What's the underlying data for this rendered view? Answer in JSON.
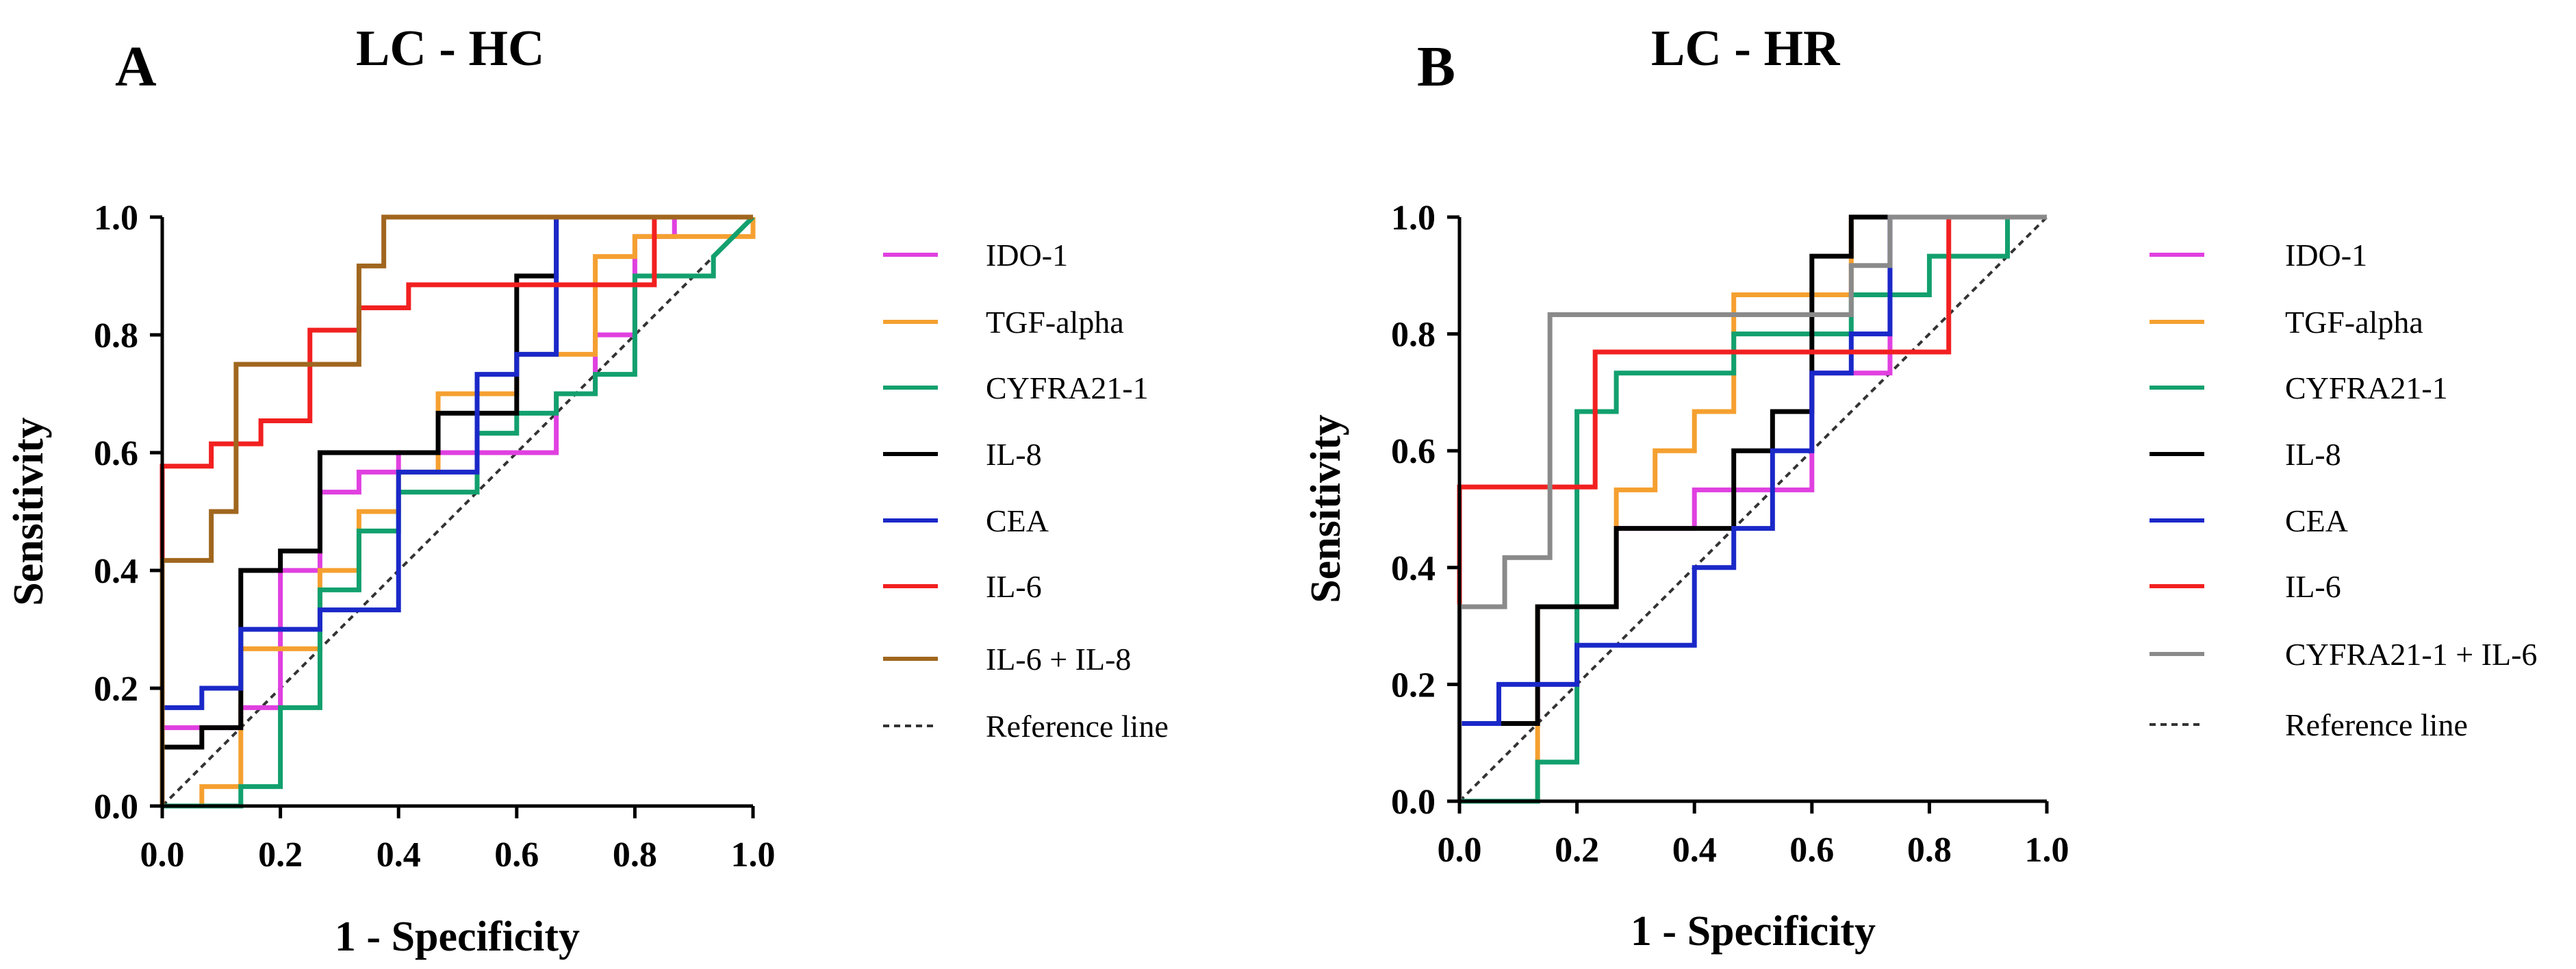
{
  "chart_data": [
    {
      "type": "line",
      "panel_letter": "A",
      "title": "LC - HC",
      "xlabel": "1 - Specificity",
      "ylabel": "Sensitivity",
      "xlim": [
        0,
        1
      ],
      "ylim": [
        0,
        1
      ],
      "xticks": [
        "0.0",
        "0.2",
        "0.4",
        "0.6",
        "0.8",
        "1.0"
      ],
      "yticks": [
        "0.0",
        "0.2",
        "0.4",
        "0.6",
        "0.8",
        "1.0"
      ],
      "legend_position": "right",
      "series": [
        {
          "name": "IDO-1",
          "color": "#e040e0",
          "x": [
            0,
            0,
            0.133,
            0.133,
            0.2,
            0.2,
            0.267,
            0.267,
            0.333,
            0.333,
            0.4,
            0.4,
            0.667,
            0.667,
            0.733,
            0.733,
            0.8,
            0.8,
            0.867,
            0.867,
            1
          ],
          "y": [
            0,
            0.133,
            0.133,
            0.167,
            0.167,
            0.4,
            0.4,
            0.533,
            0.533,
            0.567,
            0.567,
            0.6,
            0.6,
            0.7,
            0.7,
            0.8,
            0.8,
            0.967,
            0.967,
            1,
            1
          ]
        },
        {
          "name": "TGF-alpha",
          "color": "#f5a030",
          "x": [
            0,
            0.067,
            0.067,
            0.133,
            0.133,
            0.267,
            0.267,
            0.333,
            0.333,
            0.4,
            0.4,
            0.467,
            0.467,
            0.6,
            0.6,
            0.733,
            0.733,
            0.8,
            0.8,
            0.867,
            0.867,
            1,
            1
          ],
          "y": [
            0,
            0,
            0.033,
            0.033,
            0.267,
            0.267,
            0.4,
            0.4,
            0.5,
            0.5,
            0.567,
            0.567,
            0.7,
            0.7,
            0.767,
            0.767,
            0.933,
            0.933,
            0.967,
            0.967,
            0.967,
            0.967,
            1
          ]
        },
        {
          "name": "CYFRA21-1",
          "color": "#12a06e",
          "x": [
            0,
            0.133,
            0.133,
            0.2,
            0.2,
            0.267,
            0.267,
            0.333,
            0.333,
            0.4,
            0.4,
            0.533,
            0.533,
            0.6,
            0.6,
            0.667,
            0.667,
            0.733,
            0.733,
            0.8,
            0.8,
            0.933,
            0.933,
            1
          ],
          "y": [
            0,
            0,
            0.033,
            0.033,
            0.167,
            0.167,
            0.367,
            0.367,
            0.467,
            0.467,
            0.533,
            0.533,
            0.633,
            0.633,
            0.667,
            0.667,
            0.7,
            0.7,
            0.733,
            0.733,
            0.9,
            0.9,
            0.933,
            1
          ]
        },
        {
          "name": "IL-8",
          "color": "#000000",
          "x": [
            0,
            0,
            0.067,
            0.067,
            0.133,
            0.133,
            0.2,
            0.2,
            0.267,
            0.267,
            0.467,
            0.467,
            0.533,
            0.533,
            0.6,
            0.6,
            0.667,
            0.667,
            1
          ],
          "y": [
            0,
            0.1,
            0.1,
            0.133,
            0.133,
            0.4,
            0.4,
            0.433,
            0.433,
            0.6,
            0.6,
            0.667,
            0.667,
            0.667,
            0.667,
            0.9,
            0.9,
            1,
            1
          ]
        },
        {
          "name": "CEA",
          "color": "#1a28c8",
          "x": [
            0,
            0,
            0.067,
            0.067,
            0.133,
            0.133,
            0.267,
            0.267,
            0.4,
            0.4,
            0.533,
            0.533,
            0.6,
            0.6,
            0.667,
            0.667,
            1
          ],
          "y": [
            0,
            0.167,
            0.167,
            0.2,
            0.2,
            0.3,
            0.3,
            0.333,
            0.333,
            0.567,
            0.567,
            0.733,
            0.733,
            0.767,
            0.767,
            1,
            1
          ]
        },
        {
          "name": "IL-6",
          "color": "#f22020",
          "x": [
            0,
            0,
            0.083,
            0.083,
            0.167,
            0.167,
            0.25,
            0.25,
            0.333,
            0.333,
            0.417,
            0.417,
            0.833,
            0.833,
            1
          ],
          "y": [
            0,
            0.577,
            0.577,
            0.615,
            0.615,
            0.654,
            0.654,
            0.808,
            0.808,
            0.846,
            0.846,
            0.885,
            0.885,
            1,
            1
          ]
        },
        {
          "name": "IL-6 + IL-8",
          "color": "#a0661e",
          "x": [
            0,
            0,
            0.083,
            0.083,
            0.125,
            0.125,
            0.333,
            0.333,
            0.375,
            0.375,
            0.4,
            0.4,
            1
          ],
          "y": [
            0,
            0.417,
            0.417,
            0.5,
            0.5,
            0.75,
            0.75,
            0.917,
            0.917,
            1,
            1,
            1,
            1
          ]
        }
      ],
      "reference": {
        "name": "Reference line",
        "color": "#333333",
        "x": [
          0,
          1
        ],
        "y": [
          0,
          1
        ]
      }
    },
    {
      "type": "line",
      "panel_letter": "B",
      "title": "LC - HR",
      "xlabel": "1 - Specificity",
      "ylabel": "Sensitivity",
      "xlim": [
        0,
        1
      ],
      "ylim": [
        0,
        1
      ],
      "xticks": [
        "0.0",
        "0.2",
        "0.4",
        "0.6",
        "0.8",
        "1.0"
      ],
      "yticks": [
        "0.0",
        "0.2",
        "0.4",
        "0.6",
        "0.8",
        "1.0"
      ],
      "legend_position": "right",
      "series": [
        {
          "name": "IDO-1",
          "color": "#e040e0",
          "x": [
            0,
            0,
            0.133,
            0.133,
            0.2,
            0.2,
            0.267,
            0.267,
            0.4,
            0.4,
            0.6,
            0.6,
            0.733,
            0.733,
            1
          ],
          "y": [
            0,
            0.133,
            0.133,
            0.2,
            0.2,
            0.333,
            0.333,
            0.467,
            0.467,
            0.533,
            0.533,
            0.733,
            0.733,
            1,
            1
          ]
        },
        {
          "name": "TGF-alpha",
          "color": "#f5a030",
          "x": [
            0,
            0.133,
            0.133,
            0.267,
            0.267,
            0.333,
            0.333,
            0.4,
            0.4,
            0.467,
            0.467,
            0.667,
            0.667,
            1
          ],
          "y": [
            0,
            0,
            0.333,
            0.333,
            0.533,
            0.533,
            0.6,
            0.6,
            0.667,
            0.667,
            0.867,
            0.867,
            1,
            1
          ]
        },
        {
          "name": "CYFRA21-1",
          "color": "#12a06e",
          "x": [
            0,
            0.133,
            0.133,
            0.2,
            0.2,
            0.267,
            0.267,
            0.467,
            0.467,
            0.667,
            0.667,
            0.8,
            0.8,
            0.933,
            0.933,
            1
          ],
          "y": [
            0,
            0,
            0.067,
            0.067,
            0.667,
            0.667,
            0.733,
            0.733,
            0.8,
            0.8,
            0.867,
            0.867,
            0.933,
            0.933,
            1,
            1
          ]
        },
        {
          "name": "IL-8",
          "color": "#000000",
          "x": [
            0,
            0,
            0.133,
            0.133,
            0.267,
            0.267,
            0.467,
            0.467,
            0.533,
            0.533,
            0.6,
            0.6,
            0.667,
            0.667,
            1
          ],
          "y": [
            0,
            0.133,
            0.133,
            0.333,
            0.333,
            0.467,
            0.467,
            0.6,
            0.6,
            0.667,
            0.667,
            0.933,
            0.933,
            1,
            1
          ]
        },
        {
          "name": "CEA",
          "color": "#1a28c8",
          "x": [
            0,
            0,
            0.067,
            0.067,
            0.133,
            0.133,
            0.2,
            0.2,
            0.4,
            0.4,
            0.467,
            0.467,
            0.533,
            0.533,
            0.6,
            0.6,
            0.667,
            0.667,
            0.733,
            0.733,
            1
          ],
          "y": [
            0,
            0.133,
            0.133,
            0.2,
            0.2,
            0.2,
            0.2,
            0.267,
            0.267,
            0.4,
            0.4,
            0.467,
            0.467,
            0.6,
            0.6,
            0.733,
            0.733,
            0.8,
            0.8,
            1,
            1
          ]
        },
        {
          "name": "IL-6",
          "color": "#f22020",
          "x": [
            0,
            0,
            0.231,
            0.231,
            0.769,
            0.769,
            0.833,
            0.833,
            1
          ],
          "y": [
            0,
            0.538,
            0.538,
            0.769,
            0.769,
            0.769,
            0.769,
            1,
            1
          ]
        },
        {
          "name": "CYFRA21-1 + IL-6",
          "color": "#8a8a8a",
          "x": [
            0,
            0,
            0.077,
            0.077,
            0.154,
            0.154,
            0.667,
            0.667,
            0.733,
            0.733,
            0.767,
            0.767,
            1
          ],
          "y": [
            0,
            0.333,
            0.333,
            0.417,
            0.417,
            0.833,
            0.833,
            0.917,
            0.917,
            1,
            1,
            1,
            1
          ]
        }
      ],
      "reference": {
        "name": "Reference line",
        "color": "#333333",
        "x": [
          0,
          1
        ],
        "y": [
          0,
          1
        ]
      }
    }
  ]
}
